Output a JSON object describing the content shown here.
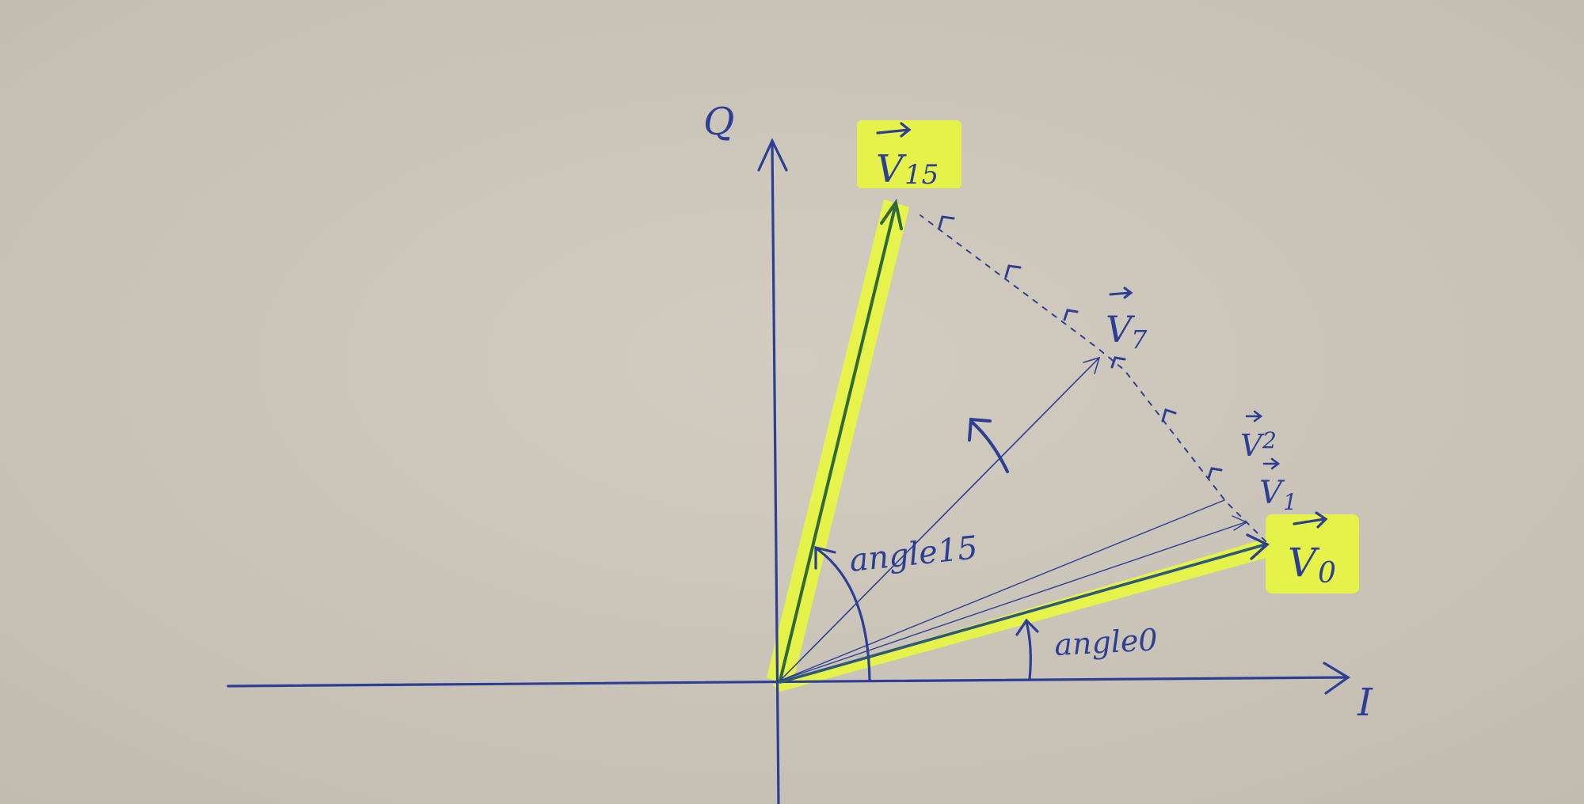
{
  "labels": {
    "q_axis": "Q",
    "i_axis": "I",
    "v15_letter": "V",
    "v15_sub": "15",
    "v7_letter": "V",
    "v7_sub": "7",
    "v2_letter": "V",
    "v2_sub": "2",
    "v1_letter": "V",
    "v1_sub": "1",
    "v0_letter": "V",
    "v0_sub": "0",
    "angle15": "angle15",
    "angle0": "angle0"
  },
  "colors": {
    "paper": "#cdc7bc",
    "ink": "#2c3f95",
    "highlighter": "#e8f640",
    "green_ink": "#2f6a3a"
  }
}
